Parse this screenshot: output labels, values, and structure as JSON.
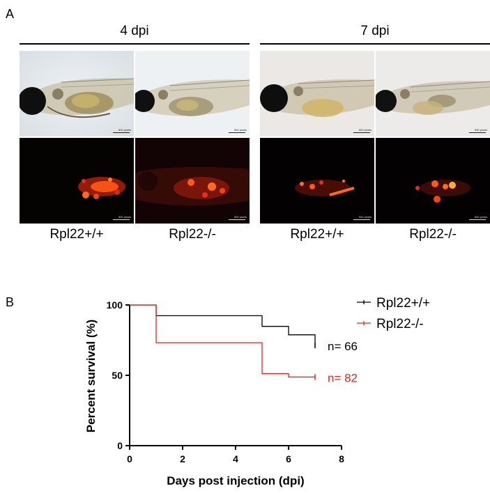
{
  "panel_a": {
    "letter": "A",
    "timepoints": [
      {
        "label": "4 dpi"
      },
      {
        "label": "7 dpi"
      }
    ],
    "genotypes": [
      "Rpl22+/+",
      "Rpl22-/-",
      "Rpl22+/+",
      "Rpl22-/-"
    ],
    "scale_text": "500 pixels",
    "image_kinds": [
      "brightfield-zebrafish-larva",
      "fluorescence-red-signal"
    ]
  },
  "panel_b": {
    "letter": "B",
    "chart_data": {
      "type": "line",
      "subtype": "kaplan-meier-survival",
      "xlabel": "Days post injection (dpi)",
      "ylabel": "Percent survival (%)",
      "xlim": [
        0,
        8
      ],
      "ylim": [
        0,
        100
      ],
      "xticks": [
        0,
        2,
        4,
        6,
        8
      ],
      "yticks": [
        0,
        50,
        100
      ],
      "legend_position": "top-right",
      "series": [
        {
          "name": "Rpl22+/+",
          "color": "#000000",
          "steps": [
            [
              0,
              100
            ],
            [
              1,
              92.4
            ],
            [
              5,
              84.8
            ],
            [
              6,
              78.8
            ],
            [
              7,
              71.2
            ]
          ],
          "end_x": 7,
          "n_label": "n= 66"
        },
        {
          "name": "Rpl22-/-",
          "color": "#e8241c",
          "steps": [
            [
              0,
              100
            ],
            [
              1,
              73.2
            ],
            [
              5,
              51.2
            ],
            [
              6,
              48.8
            ]
          ],
          "end_x": 7,
          "n_label": "n= 82"
        }
      ]
    }
  }
}
